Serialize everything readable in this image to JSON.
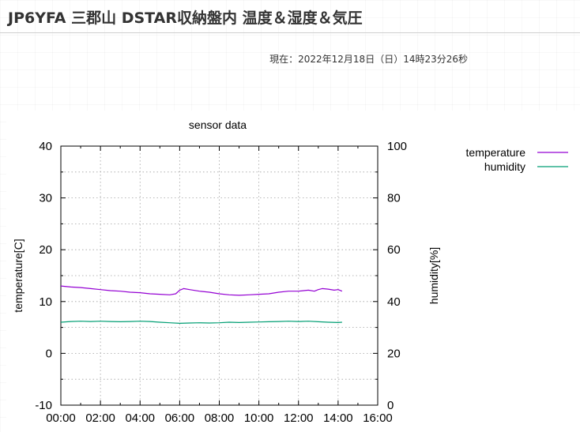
{
  "page": {
    "title": "JP6YFA 三郡山 DSTAR収納盤内 温度＆湿度＆気圧",
    "timestamp_label": "現在：",
    "timestamp_value": "2022年12月18日（日）14時23分26秒"
  },
  "chart_data": {
    "type": "line",
    "title": "sensor data",
    "xlabel": "",
    "ylabel": "temperature[C]",
    "y2label": "humidity[%]",
    "x_ticks": [
      "00:00",
      "02:00",
      "04:00",
      "06:00",
      "08:00",
      "10:00",
      "12:00",
      "14:00",
      "16:00"
    ],
    "xlim": [
      0,
      16
    ],
    "ylim": [
      -10,
      40
    ],
    "y2lim": [
      0,
      100
    ],
    "y_ticks": [
      "-10",
      "0",
      "10",
      "20",
      "30",
      "40"
    ],
    "y2_ticks": [
      "0",
      "20",
      "40",
      "60",
      "80",
      "100"
    ],
    "grid": true,
    "legend_position": "outside-top-right",
    "series": [
      {
        "name": "temperature",
        "axis": "left",
        "color": "#9400d3",
        "x": [
          0.0,
          0.5,
          1.0,
          1.5,
          2.0,
          2.5,
          3.0,
          3.5,
          4.0,
          4.5,
          5.0,
          5.5,
          5.8,
          6.0,
          6.2,
          6.5,
          7.0,
          7.5,
          8.0,
          8.5,
          9.0,
          9.5,
          10.0,
          10.5,
          11.0,
          11.5,
          12.0,
          12.5,
          12.8,
          13.0,
          13.2,
          13.5,
          13.8,
          14.0,
          14.2
        ],
        "y": [
          13.0,
          12.8,
          12.7,
          12.5,
          12.3,
          12.1,
          12.0,
          11.8,
          11.7,
          11.5,
          11.4,
          11.3,
          11.5,
          12.2,
          12.5,
          12.3,
          12.0,
          11.8,
          11.5,
          11.3,
          11.2,
          11.3,
          11.4,
          11.5,
          11.8,
          12.0,
          12.0,
          12.2,
          12.0,
          12.3,
          12.5,
          12.4,
          12.2,
          12.3,
          12.0
        ]
      },
      {
        "name": "humidity",
        "axis": "right",
        "color": "#009e73",
        "x": [
          0.0,
          0.5,
          1.0,
          1.5,
          2.0,
          2.5,
          3.0,
          3.5,
          4.0,
          4.5,
          5.0,
          5.5,
          6.0,
          6.5,
          7.0,
          7.5,
          8.0,
          8.5,
          9.0,
          9.5,
          10.0,
          10.5,
          11.0,
          11.5,
          12.0,
          12.5,
          13.0,
          13.5,
          14.0,
          14.2
        ],
        "y": [
          32.0,
          32.3,
          32.4,
          32.3,
          32.4,
          32.3,
          32.2,
          32.3,
          32.4,
          32.3,
          32.0,
          31.8,
          31.6,
          31.7,
          31.8,
          31.7,
          31.8,
          32.0,
          31.9,
          32.0,
          32.1,
          32.2,
          32.3,
          32.4,
          32.3,
          32.4,
          32.2,
          32.0,
          31.9,
          32.0
        ]
      }
    ]
  }
}
